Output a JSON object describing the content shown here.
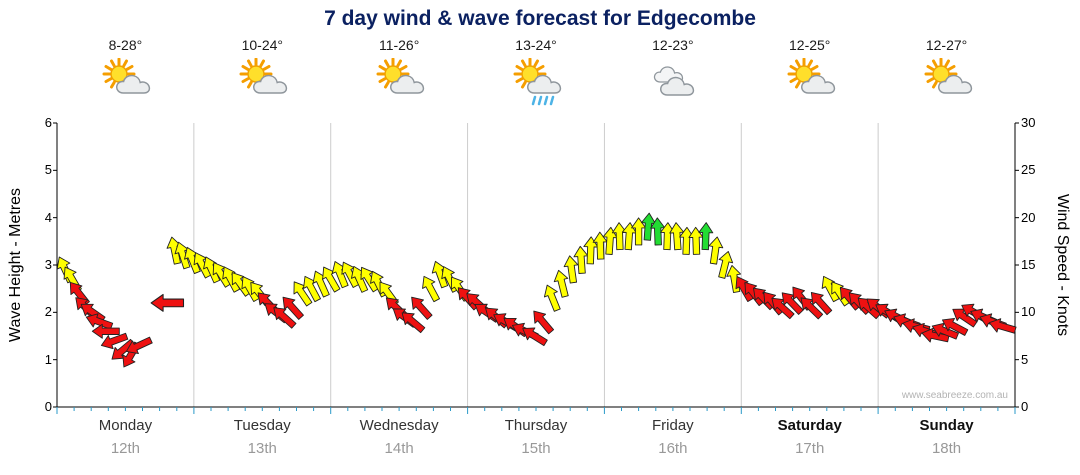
{
  "title": "7 day wind & wave forecast for Edgecombe",
  "watermark": "www.seabreeze.com.au",
  "days": [
    {
      "name": "Monday",
      "date": "12th",
      "temp": "8-28°",
      "icon": "partly-cloudy",
      "bold": false
    },
    {
      "name": "Tuesday",
      "date": "13th",
      "temp": "10-24°",
      "icon": "partly-cloudy",
      "bold": false
    },
    {
      "name": "Wednesday",
      "date": "14th",
      "temp": "11-26°",
      "icon": "partly-cloudy",
      "bold": false
    },
    {
      "name": "Thursday",
      "date": "15th",
      "temp": "13-24°",
      "icon": "partly-cloudy-rain",
      "bold": false
    },
    {
      "name": "Friday",
      "date": "16th",
      "temp": "12-23°",
      "icon": "cloudy",
      "bold": false
    },
    {
      "name": "Saturday",
      "date": "17th",
      "temp": "12-25°",
      "icon": "partly-cloudy",
      "bold": true
    },
    {
      "name": "Sunday",
      "date": "18th",
      "temp": "12-27°",
      "icon": "partly-cloudy",
      "bold": true
    }
  ],
  "axes": {
    "left": {
      "label": "Wave Height - Metres",
      "ticks": [
        0,
        1,
        2,
        3,
        4,
        5,
        6
      ],
      "range": [
        0,
        6
      ]
    },
    "right": {
      "label": "Wind Speed - Knots",
      "ticks": [
        0,
        5,
        10,
        15,
        20,
        25,
        30
      ],
      "range": [
        0,
        30
      ]
    }
  },
  "colors": {
    "title_text": "#0b2161",
    "date_text": "#999999",
    "day_grid": "#cccccc",
    "axis": "#000000",
    "tick_blue": "#2a9ac8",
    "arrow_outline": "#222222"
  },
  "chart_data": {
    "type": "scatter",
    "marker": "wind-arrow",
    "title": "7 day wind & wave forecast for Edgecombe",
    "x_unit": "days",
    "x_range": [
      0,
      7
    ],
    "categories": [
      "Monday 12th",
      "Tuesday 13th",
      "Wednesday 14th",
      "Thursday 15th",
      "Friday 16th",
      "Saturday 17th",
      "Sunday 18th"
    ],
    "ylabel_left": "Wave Height - Metres",
    "ylabel_right": "Wind Speed - Knots",
    "y_unit": "knots",
    "y_range": [
      0,
      30
    ],
    "grid": "vertical-day-separators",
    "color_map": {
      "Y": "#ffff00",
      "R": "#ee1111",
      "G": "#22dd33"
    },
    "columns": [
      "day_offset",
      "wind_knots",
      "arrow_dir_deg",
      "color",
      "scale"
    ],
    "points": [
      [
        0.06,
        14.5,
        -25,
        "Y"
      ],
      [
        0.11,
        13.5,
        -30,
        "Y"
      ],
      [
        0.16,
        12.0,
        -38,
        "R"
      ],
      [
        0.21,
        10.5,
        -45,
        "R"
      ],
      [
        0.26,
        10.0,
        -55,
        "R"
      ],
      [
        0.31,
        9.0,
        -70,
        "R"
      ],
      [
        0.36,
        8.0,
        -90,
        "R"
      ],
      [
        0.42,
        7.0,
        -110,
        "R"
      ],
      [
        0.48,
        6.0,
        -130,
        "R"
      ],
      [
        0.54,
        5.5,
        -150,
        "R"
      ],
      [
        0.6,
        6.5,
        -115,
        "R"
      ],
      [
        0.81,
        11.0,
        -90,
        "R",
        1.2
      ],
      [
        0.86,
        16.5,
        -12,
        "Y"
      ],
      [
        0.92,
        16.0,
        -18,
        "Y"
      ],
      [
        0.99,
        15.5,
        -22,
        "Y"
      ],
      [
        1.06,
        15.0,
        -28,
        "Y"
      ],
      [
        1.13,
        14.5,
        -24,
        "Y"
      ],
      [
        1.2,
        14.0,
        -32,
        "Y"
      ],
      [
        1.27,
        13.5,
        -28,
        "Y"
      ],
      [
        1.34,
        13.0,
        -36,
        "Y"
      ],
      [
        1.41,
        12.5,
        -30,
        "Y"
      ],
      [
        1.48,
        12.0,
        -38,
        "Y"
      ],
      [
        1.54,
        11.0,
        -44,
        "R"
      ],
      [
        1.6,
        10.0,
        -52,
        "R"
      ],
      [
        1.66,
        9.5,
        -48,
        "R"
      ],
      [
        1.72,
        10.5,
        -42,
        "R"
      ],
      [
        1.79,
        12.0,
        -34,
        "Y"
      ],
      [
        1.86,
        12.5,
        -28,
        "Y"
      ],
      [
        1.93,
        13.0,
        -24,
        "Y"
      ],
      [
        2.0,
        13.5,
        -30,
        "Y"
      ],
      [
        2.07,
        14.0,
        -22,
        "Y"
      ],
      [
        2.14,
        14.0,
        -28,
        "Y"
      ],
      [
        2.21,
        13.5,
        -24,
        "Y"
      ],
      [
        2.28,
        13.5,
        -32,
        "Y"
      ],
      [
        2.35,
        13.0,
        -26,
        "Y"
      ],
      [
        2.42,
        12.0,
        -36,
        "Y"
      ],
      [
        2.48,
        10.5,
        -46,
        "R"
      ],
      [
        2.54,
        9.5,
        -54,
        "R"
      ],
      [
        2.6,
        9.0,
        -50,
        "R"
      ],
      [
        2.66,
        10.5,
        -42,
        "R"
      ],
      [
        2.73,
        12.5,
        -28,
        "Y"
      ],
      [
        2.8,
        14.0,
        -20,
        "Y"
      ],
      [
        2.87,
        13.5,
        -26,
        "Y"
      ],
      [
        2.94,
        12.5,
        -34,
        "Y"
      ],
      [
        3.0,
        11.5,
        -42,
        "R"
      ],
      [
        3.07,
        11.0,
        -48,
        "R"
      ],
      [
        3.14,
        10.0,
        -56,
        "R"
      ],
      [
        3.21,
        9.5,
        -50,
        "R"
      ],
      [
        3.28,
        9.0,
        -60,
        "R"
      ],
      [
        3.35,
        8.5,
        -55,
        "R"
      ],
      [
        3.42,
        8.0,
        -65,
        "R"
      ],
      [
        3.49,
        7.5,
        -58,
        "R"
      ],
      [
        3.55,
        9.0,
        -40,
        "R"
      ],
      [
        3.62,
        11.5,
        -22,
        "Y"
      ],
      [
        3.69,
        13.0,
        -14,
        "Y"
      ],
      [
        3.76,
        14.5,
        -8,
        "Y"
      ],
      [
        3.83,
        15.5,
        -4,
        "Y"
      ],
      [
        3.9,
        16.5,
        2,
        "Y"
      ],
      [
        3.97,
        17.0,
        -2,
        "Y"
      ],
      [
        4.04,
        17.5,
        4,
        "Y"
      ],
      [
        4.11,
        18.0,
        -2,
        "Y"
      ],
      [
        4.18,
        18.0,
        4,
        "Y"
      ],
      [
        4.25,
        18.5,
        0,
        "Y"
      ],
      [
        4.32,
        19.0,
        4,
        "G"
      ],
      [
        4.39,
        18.5,
        -2,
        "G"
      ],
      [
        4.46,
        18.0,
        2,
        "Y"
      ],
      [
        4.53,
        18.0,
        -4,
        "Y"
      ],
      [
        4.6,
        17.5,
        2,
        "Y"
      ],
      [
        4.67,
        17.5,
        -2,
        "Y"
      ],
      [
        4.74,
        18.0,
        2,
        "G"
      ],
      [
        4.81,
        16.5,
        8,
        "Y"
      ],
      [
        4.88,
        15.0,
        14,
        "Y"
      ],
      [
        4.95,
        13.5,
        -10,
        "Y"
      ],
      [
        5.02,
        12.5,
        -30,
        "R"
      ],
      [
        5.09,
        12.0,
        -38,
        "R"
      ],
      [
        5.16,
        11.5,
        -44,
        "R"
      ],
      [
        5.23,
        11.0,
        -40,
        "R"
      ],
      [
        5.3,
        10.5,
        -48,
        "R"
      ],
      [
        5.37,
        11.0,
        -44,
        "R"
      ],
      [
        5.44,
        11.5,
        -38,
        "R"
      ],
      [
        5.51,
        10.5,
        -46,
        "R"
      ],
      [
        5.58,
        11.0,
        -42,
        "R"
      ],
      [
        5.65,
        12.5,
        -28,
        "Y"
      ],
      [
        5.72,
        12.0,
        -34,
        "Y"
      ],
      [
        5.79,
        11.5,
        -40,
        "R"
      ],
      [
        5.86,
        11.0,
        -44,
        "R"
      ],
      [
        5.93,
        10.5,
        -48,
        "R"
      ],
      [
        6.0,
        10.5,
        -52,
        "R"
      ],
      [
        6.07,
        10.0,
        -58,
        "R"
      ],
      [
        6.14,
        9.5,
        -64,
        "R"
      ],
      [
        6.21,
        9.0,
        -70,
        "R"
      ],
      [
        6.28,
        8.5,
        -76,
        "R"
      ],
      [
        6.35,
        8.0,
        -72,
        "R"
      ],
      [
        6.42,
        7.5,
        -78,
        "R"
      ],
      [
        6.49,
        8.0,
        -68,
        "R"
      ],
      [
        6.56,
        8.5,
        -62,
        "R"
      ],
      [
        6.63,
        9.5,
        -56,
        "R"
      ],
      [
        6.7,
        10.0,
        -60,
        "R"
      ],
      [
        6.77,
        9.5,
        -66,
        "R"
      ],
      [
        6.84,
        9.0,
        -70,
        "R"
      ],
      [
        6.91,
        8.5,
        -74,
        "R"
      ]
    ]
  }
}
